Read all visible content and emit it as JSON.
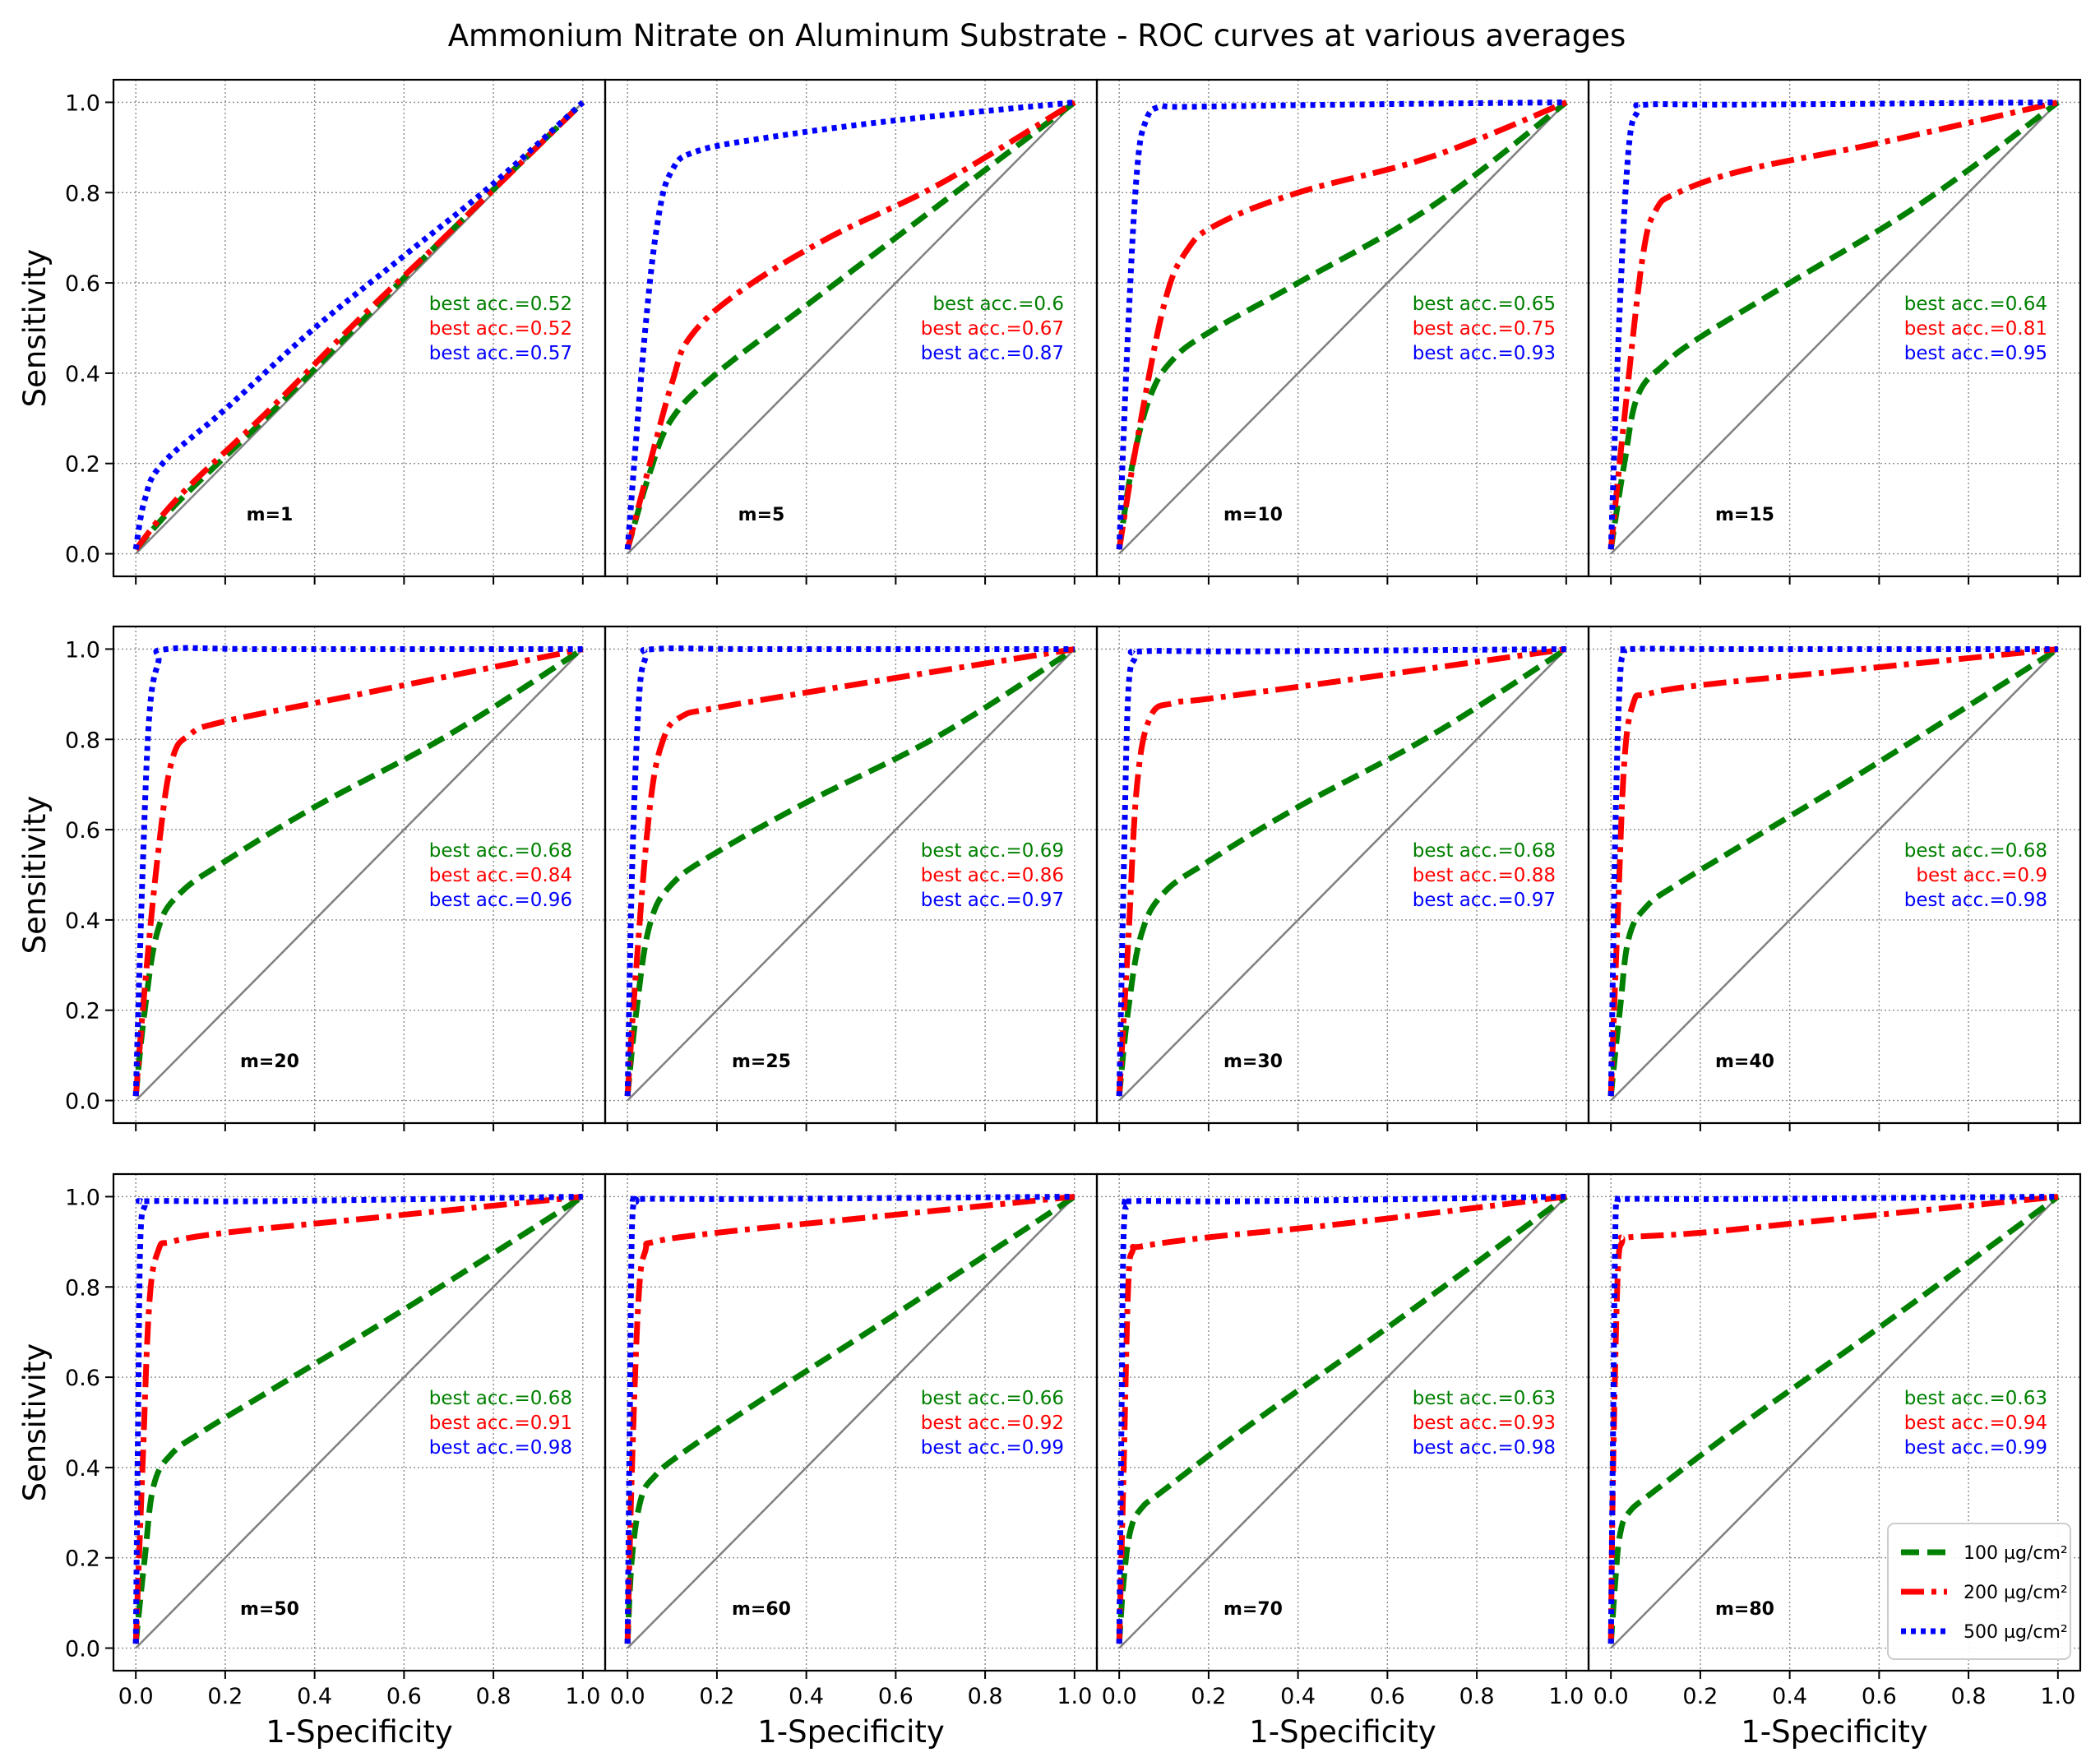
{
  "figure": {
    "title": "Ammonium Nitrate on Aluminum Substrate - ROC curves at various averages",
    "xlabel": "1-Specificity",
    "ylabel": "Sensitivity"
  },
  "colors": {
    "100": "#008000",
    "200": "#ff0000",
    "500": "#0000ff",
    "diagonal": "#808080"
  },
  "legend": {
    "position": "lower right of last panel",
    "entries": [
      {
        "key": "100",
        "label": "100 µg/cm²",
        "style": "dashed"
      },
      {
        "key": "200",
        "label": "200 µg/cm²",
        "style": "dash-dot"
      },
      {
        "key": "500",
        "label": "500 µg/cm²",
        "style": "dotted"
      }
    ]
  },
  "chart_data": {
    "type": "line",
    "title": "Ammonium Nitrate on Aluminum Substrate - ROC curves at various averages",
    "xlabel": "1-Specificity",
    "ylabel": "Sensitivity",
    "xlim": [
      -0.05,
      1.05
    ],
    "ylim": [
      -0.05,
      1.05
    ],
    "ticks": [
      0.0,
      0.2,
      0.4,
      0.6,
      0.8,
      1.0
    ],
    "tick_labels": [
      "0.0",
      "0.2",
      "0.4",
      "0.6",
      "0.8",
      "1.0"
    ],
    "grid": true,
    "layout": "3 rows x 4 columns, shared axes",
    "panels": [
      {
        "label": "m=1",
        "acc_labels": [
          "best acc.=0.52",
          "best acc.=0.52",
          "best acc.=0.57"
        ],
        "series": [
          {
            "name": "100 µg/cm²",
            "x": [
              0,
              0.1,
              0.3,
              0.5,
              0.7,
              1
            ],
            "y": [
              0.01,
              0.12,
              0.31,
              0.51,
              0.71,
              1
            ]
          },
          {
            "name": "200 µg/cm²",
            "x": [
              0,
              0.1,
              0.3,
              0.5,
              0.7,
              1
            ],
            "y": [
              0.01,
              0.13,
              0.32,
              0.52,
              0.71,
              1
            ]
          },
          {
            "name": "500 µg/cm²",
            "x": [
              0,
              0.02,
              0.06,
              0.2,
              0.4,
              0.6,
              0.8,
              1
            ],
            "y": [
              0.01,
              0.12,
              0.2,
              0.32,
              0.5,
              0.66,
              0.82,
              1
            ]
          }
        ]
      },
      {
        "label": "m=5",
        "acc_labels": [
          "best acc.=0.6",
          "best acc.=0.67",
          "best acc.=0.87"
        ],
        "series": [
          {
            "name": "100 µg/cm²",
            "x": [
              0,
              0.05,
              0.1,
              0.2,
              0.4,
              0.6,
              0.8,
              1
            ],
            "y": [
              0.01,
              0.18,
              0.3,
              0.4,
              0.55,
              0.7,
              0.85,
              1
            ]
          },
          {
            "name": "200 µg/cm²",
            "x": [
              0,
              0.05,
              0.1,
              0.14,
              0.25,
              0.45,
              0.7,
              1
            ],
            "y": [
              0.01,
              0.2,
              0.38,
              0.48,
              0.58,
              0.7,
              0.82,
              1
            ]
          },
          {
            "name": "500 µg/cm²",
            "x": [
              0,
              0.04,
              0.07,
              0.1,
              0.15,
              0.3,
              0.6,
              1
            ],
            "y": [
              0.01,
              0.5,
              0.75,
              0.85,
              0.89,
              0.92,
              0.96,
              1
            ]
          }
        ]
      },
      {
        "label": "m=10",
        "acc_labels": [
          "best acc.=0.65",
          "best acc.=0.75",
          "best acc.=0.93"
        ],
        "series": [
          {
            "name": "100 µg/cm²",
            "x": [
              0,
              0.03,
              0.07,
              0.12,
              0.2,
              0.4,
              0.7,
              1
            ],
            "y": [
              0.01,
              0.2,
              0.35,
              0.43,
              0.49,
              0.6,
              0.77,
              1
            ]
          },
          {
            "name": "200 µg/cm²",
            "x": [
              0,
              0.04,
              0.1,
              0.15,
              0.22,
              0.4,
              0.7,
              1
            ],
            "y": [
              0.01,
              0.25,
              0.55,
              0.67,
              0.73,
              0.8,
              0.88,
              1
            ]
          },
          {
            "name": "500 µg/cm²",
            "x": [
              0,
              0.02,
              0.04,
              0.06,
              0.09,
              0.15,
              0.5,
              1
            ],
            "y": [
              0.01,
              0.5,
              0.85,
              0.96,
              0.99,
              0.99,
              0.995,
              1
            ]
          }
        ]
      },
      {
        "label": "m=15",
        "acc_labels": [
          "best acc.=0.64",
          "best acc.=0.81",
          "best acc.=0.95"
        ],
        "series": [
          {
            "name": "100 µg/cm²",
            "x": [
              0,
              0.03,
              0.06,
              0.12,
              0.2,
              0.4,
              0.7,
              1
            ],
            "y": [
              0.01,
              0.2,
              0.35,
              0.42,
              0.48,
              0.6,
              0.78,
              1
            ]
          },
          {
            "name": "200 µg/cm²",
            "x": [
              0,
              0.03,
              0.07,
              0.1,
              0.15,
              0.3,
              0.6,
              1
            ],
            "y": [
              0.01,
              0.3,
              0.65,
              0.76,
              0.8,
              0.85,
              0.91,
              1
            ]
          },
          {
            "name": "500 µg/cm²",
            "x": [
              0,
              0.02,
              0.04,
              0.06,
              0.08,
              0.3,
              1
            ],
            "y": [
              0.01,
              0.55,
              0.9,
              0.98,
              0.995,
              0.995,
              1
            ]
          }
        ]
      },
      {
        "label": "m=20",
        "acc_labels": [
          "best acc.=0.68",
          "best acc.=0.84",
          "best acc.=0.96"
        ],
        "series": [
          {
            "name": "100 µg/cm²",
            "x": [
              0,
              0.02,
              0.05,
              0.1,
              0.2,
              0.4,
              0.7,
              1
            ],
            "y": [
              0.01,
              0.2,
              0.38,
              0.46,
              0.53,
              0.65,
              0.81,
              1
            ]
          },
          {
            "name": "200 µg/cm²",
            "x": [
              0,
              0.02,
              0.05,
              0.08,
              0.12,
              0.2,
              0.5,
              1
            ],
            "y": [
              0.01,
              0.25,
              0.55,
              0.75,
              0.81,
              0.84,
              0.9,
              1
            ]
          },
          {
            "name": "500 µg/cm²",
            "x": [
              0,
              0.015,
              0.03,
              0.05,
              0.07,
              0.3,
              1
            ],
            "y": [
              0.01,
              0.5,
              0.85,
              0.97,
              1,
              1,
              1
            ]
          }
        ]
      },
      {
        "label": "m=25",
        "acc_labels": [
          "best acc.=0.69",
          "best acc.=0.86",
          "best acc.=0.97"
        ],
        "series": [
          {
            "name": "100 µg/cm²",
            "x": [
              0,
              0.02,
              0.05,
              0.1,
              0.2,
              0.4,
              0.7,
              1
            ],
            "y": [
              0.01,
              0.2,
              0.39,
              0.48,
              0.55,
              0.66,
              0.81,
              1
            ]
          },
          {
            "name": "200 µg/cm²",
            "x": [
              0,
              0.02,
              0.05,
              0.08,
              0.12,
              0.2,
              0.5,
              1
            ],
            "y": [
              0.01,
              0.3,
              0.65,
              0.8,
              0.85,
              0.87,
              0.92,
              1
            ]
          },
          {
            "name": "500 µg/cm²",
            "x": [
              0,
              0.01,
              0.025,
              0.04,
              0.06,
              0.3,
              1
            ],
            "y": [
              0.01,
              0.5,
              0.88,
              0.98,
              1,
              1,
              1
            ]
          }
        ]
      },
      {
        "label": "m=30",
        "acc_labels": [
          "best acc.=0.68",
          "best acc.=0.88",
          "best acc.=0.97"
        ],
        "series": [
          {
            "name": "100 µg/cm²",
            "x": [
              0,
              0.02,
              0.05,
              0.1,
              0.2,
              0.4,
              0.7,
              1
            ],
            "y": [
              0.01,
              0.2,
              0.37,
              0.46,
              0.53,
              0.65,
              0.81,
              1
            ]
          },
          {
            "name": "200 µg/cm²",
            "x": [
              0,
              0.02,
              0.04,
              0.07,
              0.12,
              0.2,
              0.5,
              1
            ],
            "y": [
              0.01,
              0.35,
              0.7,
              0.85,
              0.88,
              0.89,
              0.93,
              1
            ]
          },
          {
            "name": "500 µg/cm²",
            "x": [
              0,
              0.01,
              0.02,
              0.035,
              0.05,
              0.3,
              1
            ],
            "y": [
              0.01,
              0.5,
              0.9,
              0.98,
              0.995,
              0.995,
              1
            ]
          }
        ]
      },
      {
        "label": "m=40",
        "acc_labels": [
          "best acc.=0.68",
          "best acc.=0.9",
          "best acc.=0.98"
        ],
        "series": [
          {
            "name": "100 µg/cm²",
            "x": [
              0,
              0.02,
              0.04,
              0.08,
              0.15,
              0.3,
              0.6,
              1
            ],
            "y": [
              0.01,
              0.2,
              0.36,
              0.43,
              0.48,
              0.57,
              0.75,
              1
            ]
          },
          {
            "name": "200 µg/cm²",
            "x": [
              0,
              0.015,
              0.03,
              0.05,
              0.08,
              0.2,
              0.5,
              1
            ],
            "y": [
              0.01,
              0.4,
              0.75,
              0.88,
              0.9,
              0.92,
              0.95,
              1
            ]
          },
          {
            "name": "500 µg/cm²",
            "x": [
              0,
              0.01,
              0.02,
              0.03,
              0.04,
              0.3,
              1
            ],
            "y": [
              0.01,
              0.6,
              0.93,
              0.99,
              1,
              1,
              1
            ]
          }
        ]
      },
      {
        "label": "m=50",
        "acc_labels": [
          "best acc.=0.68",
          "best acc.=0.91",
          "best acc.=0.98"
        ],
        "series": [
          {
            "name": "100 µg/cm²",
            "x": [
              0,
              0.02,
              0.04,
              0.08,
              0.15,
              0.3,
              0.6,
              1
            ],
            "y": [
              0.01,
              0.2,
              0.36,
              0.43,
              0.48,
              0.57,
              0.75,
              1
            ]
          },
          {
            "name": "200 µg/cm²",
            "x": [
              0,
              0.015,
              0.03,
              0.05,
              0.08,
              0.2,
              0.5,
              1
            ],
            "y": [
              0.01,
              0.4,
              0.76,
              0.88,
              0.9,
              0.92,
              0.95,
              1
            ]
          },
          {
            "name": "500 µg/cm²",
            "x": [
              0,
              0.005,
              0.01,
              0.02,
              0.03,
              0.3,
              1
            ],
            "y": [
              0.01,
              0.5,
              0.9,
              0.98,
              0.99,
              0.99,
              1
            ]
          }
        ]
      },
      {
        "label": "m=60",
        "acc_labels": [
          "best acc.=0.66",
          "best acc.=0.92",
          "best acc.=0.99"
        ],
        "series": [
          {
            "name": "100 µg/cm²",
            "x": [
              0,
              0.01,
              0.03,
              0.06,
              0.12,
              0.3,
              0.6,
              1
            ],
            "y": [
              0.01,
              0.2,
              0.33,
              0.38,
              0.43,
              0.55,
              0.74,
              1
            ]
          },
          {
            "name": "200 µg/cm²",
            "x": [
              0,
              0.01,
              0.025,
              0.04,
              0.06,
              0.2,
              0.5,
              1
            ],
            "y": [
              0.01,
              0.4,
              0.78,
              0.88,
              0.9,
              0.92,
              0.95,
              1
            ]
          },
          {
            "name": "500 µg/cm²",
            "x": [
              0,
              0.005,
              0.01,
              0.02,
              0.03,
              0.3,
              1
            ],
            "y": [
              0.01,
              0.5,
              0.93,
              0.99,
              0.995,
              0.995,
              1
            ]
          }
        ]
      },
      {
        "label": "m=70",
        "acc_labels": [
          "best acc.=0.63",
          "best acc.=0.93",
          "best acc.=0.98"
        ],
        "series": [
          {
            "name": "100 µg/cm²",
            "x": [
              0,
              0.01,
              0.025,
              0.05,
              0.1,
              0.3,
              0.6,
              1
            ],
            "y": [
              0.01,
              0.15,
              0.26,
              0.31,
              0.35,
              0.5,
              0.71,
              1
            ]
          },
          {
            "name": "200 µg/cm²",
            "x": [
              0,
              0.01,
              0.02,
              0.03,
              0.05,
              0.2,
              0.5,
              1
            ],
            "y": [
              0.01,
              0.4,
              0.8,
              0.88,
              0.89,
              0.91,
              0.94,
              1
            ]
          },
          {
            "name": "500 µg/cm²",
            "x": [
              0,
              0.005,
              0.01,
              0.02,
              0.03,
              0.3,
              1
            ],
            "y": [
              0.01,
              0.5,
              0.92,
              0.98,
              0.99,
              0.99,
              1
            ]
          }
        ]
      },
      {
        "label": "m=80",
        "acc_labels": [
          "best acc.=0.63",
          "best acc.=0.94",
          "best acc.=0.99"
        ],
        "series": [
          {
            "name": "100 µg/cm²",
            "x": [
              0,
              0.01,
              0.02,
              0.04,
              0.1,
              0.3,
              0.6,
              1
            ],
            "y": [
              0.01,
              0.15,
              0.25,
              0.3,
              0.35,
              0.5,
              0.71,
              1
            ]
          },
          {
            "name": "200 µg/cm²",
            "x": [
              0,
              0.005,
              0.015,
              0.025,
              0.04,
              0.2,
              0.5,
              1
            ],
            "y": [
              0.01,
              0.4,
              0.82,
              0.9,
              0.91,
              0.92,
              0.95,
              1
            ]
          },
          {
            "name": "500 µg/cm²",
            "x": [
              0,
              0.005,
              0.01,
              0.015,
              0.03,
              0.3,
              1
            ],
            "y": [
              0.01,
              0.5,
              0.93,
              0.99,
              0.995,
              0.995,
              1
            ]
          }
        ]
      }
    ]
  }
}
